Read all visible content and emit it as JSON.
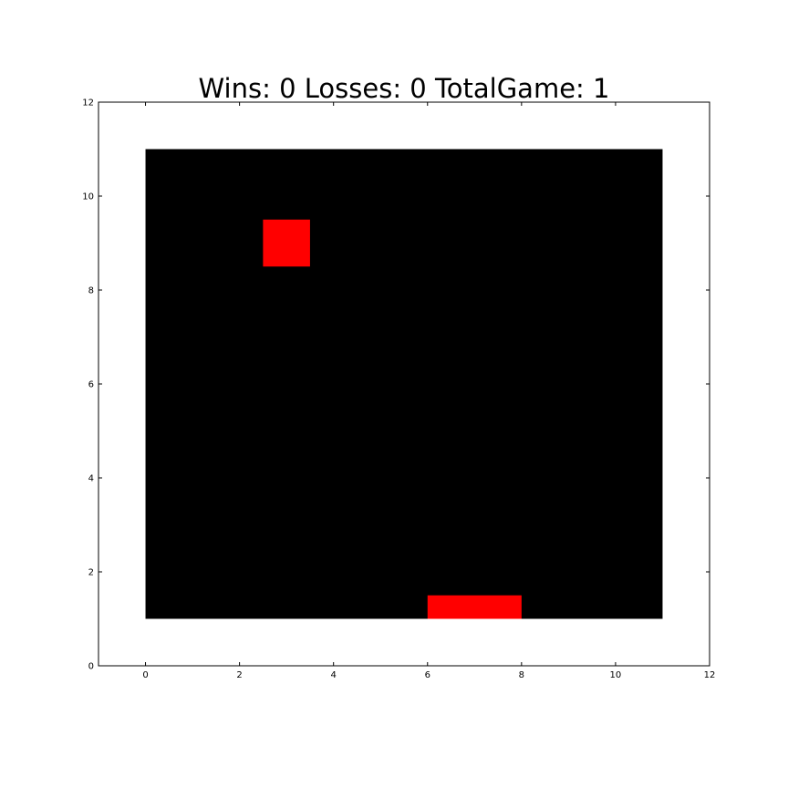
{
  "title": "Wins: 0  Losses: 0  TotalGame: 1",
  "chart_data": {
    "type": "heatmap",
    "title": "Wins: 0  Losses: 0  TotalGame: 1",
    "xlabel": "",
    "ylabel": "",
    "xlim": [
      -1,
      12
    ],
    "ylim": [
      0,
      12
    ],
    "xticks": [
      0,
      2,
      4,
      6,
      8,
      10,
      12
    ],
    "yticks": [
      0,
      2,
      4,
      6,
      8,
      10,
      12
    ],
    "background_color": "#ffffff",
    "board": {
      "x0": 0,
      "x1": 11,
      "y0": 1,
      "y1": 11,
      "color": "#000000"
    },
    "ball": {
      "x0": 2.5,
      "x1": 3.5,
      "y0": 8.5,
      "y1": 9.5,
      "color": "#ff0000"
    },
    "paddle": {
      "x0": 6,
      "x1": 8,
      "y0": 1,
      "y1": 1.5,
      "color": "#ff0000"
    }
  }
}
